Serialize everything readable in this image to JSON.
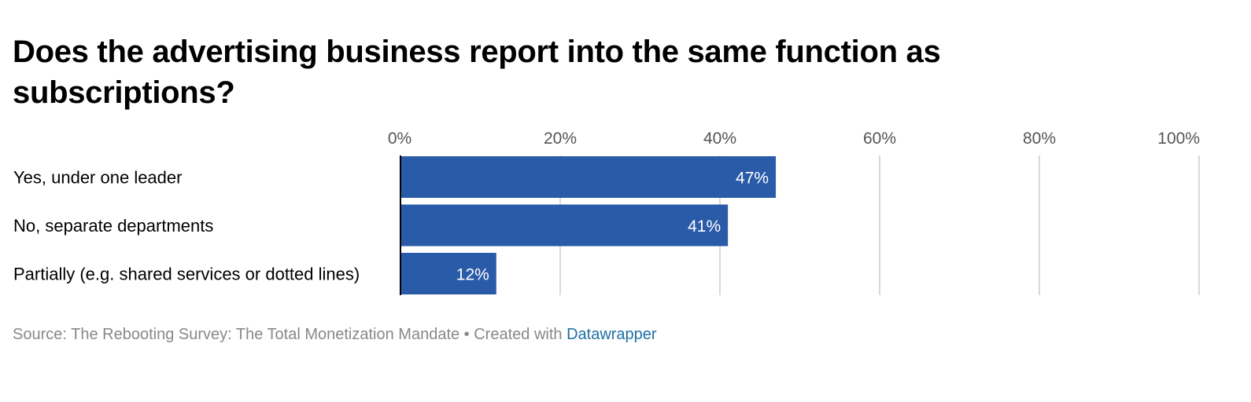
{
  "title": "Does the advertising business report into the same function as subscriptions?",
  "chart_data": {
    "type": "bar",
    "orientation": "horizontal",
    "categories": [
      "Yes, under one leader",
      "No, separate departments",
      "Partially (e.g. shared services or dotted lines)"
    ],
    "values": [
      47,
      41,
      12
    ],
    "value_labels": [
      "47%",
      "41%",
      "12%"
    ],
    "xlim": [
      0,
      100
    ],
    "x_ticks": [
      0,
      20,
      40,
      60,
      80,
      100
    ],
    "x_tick_labels": [
      "0%",
      "20%",
      "40%",
      "60%",
      "80%",
      "100%"
    ],
    "x_axis_position": "top",
    "grid": true,
    "bar_color": "#2a5ba8",
    "grid_color": "#d9d9d9",
    "xlabel": "",
    "ylabel": ""
  },
  "footer": {
    "source_text": "Source: The Rebooting Survey: The Total Monetization Mandate • Created with ",
    "link_text": "Datawrapper"
  },
  "colors": {
    "text": "#000000",
    "footer_text": "#888888",
    "link": "#1d6fa5"
  }
}
